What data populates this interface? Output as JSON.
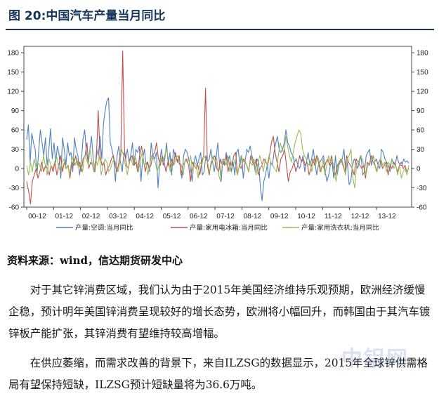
{
  "figure": {
    "title": "图 20:中国汽车产量当月同比"
  },
  "chart_data": {
    "type": "line",
    "x_ticks": [
      "00-12",
      "01-12",
      "02-12",
      "03-12",
      "04-12",
      "05-12",
      "06-12",
      "07-12",
      "08-12",
      "09-12",
      "10-12",
      "11-12",
      "12-12",
      "13-12"
    ],
    "x_range": [
      "2000-12",
      "2014-09"
    ],
    "y_ticks": [
      180,
      150,
      120,
      90,
      60,
      30,
      0,
      -30,
      -60
    ],
    "ylim": [
      -60,
      190
    ],
    "y_axis": "dual (identical left and right)",
    "grid": false,
    "legend_position": "bottom",
    "series": [
      {
        "name": "产量:空调:当月同比",
        "color": "#4f81bd",
        "values": [
          45,
          68,
          10,
          55,
          40,
          30,
          -10,
          25,
          60,
          40,
          20,
          48,
          5,
          30,
          62,
          15,
          40,
          10,
          35,
          22,
          -15,
          48,
          30,
          5,
          40,
          20,
          25,
          -5,
          48,
          30,
          20,
          -10,
          10,
          45,
          60,
          25,
          10,
          30,
          50,
          15,
          -5,
          30,
          20,
          50,
          15,
          70,
          90,
          105,
          110,
          40,
          30,
          15,
          -20,
          20,
          35,
          10,
          -5,
          25,
          15,
          30,
          10,
          20,
          40,
          5,
          30,
          25,
          35,
          -20,
          15,
          30,
          5,
          10,
          -5,
          40,
          20,
          15,
          25,
          -30,
          10,
          30,
          5,
          15,
          40,
          5,
          25,
          -10,
          30,
          20,
          15,
          10,
          5,
          -15,
          20,
          30,
          25,
          15,
          0,
          -20,
          10,
          20,
          5,
          15,
          25,
          -10,
          -5,
          20,
          10,
          15,
          30,
          10,
          -5,
          15,
          40,
          10,
          -20,
          15,
          5,
          25,
          10,
          20,
          -5,
          10,
          -10,
          25,
          30,
          5,
          20,
          -15,
          10,
          30,
          25,
          35,
          20,
          10,
          -5,
          15,
          10,
          -30,
          -50,
          -20,
          -10,
          5,
          -15,
          10,
          5,
          25,
          40,
          50,
          30,
          25,
          30,
          40,
          60,
          40,
          35,
          25,
          20,
          10,
          15,
          5,
          0,
          10,
          20,
          -5,
          10,
          25,
          5,
          15,
          30,
          10,
          -10,
          5,
          10,
          15,
          20,
          -5,
          -20,
          -10,
          5,
          10,
          -15,
          20,
          -10,
          5,
          10,
          15,
          30,
          -5,
          10,
          -25,
          -20,
          5,
          15,
          10,
          0,
          10,
          20,
          -10,
          -5,
          20,
          25,
          30,
          5,
          20,
          10,
          15,
          5,
          0,
          30,
          25,
          15,
          10,
          5,
          -5,
          15,
          10,
          5,
          20,
          10,
          5,
          5,
          15,
          10,
          12,
          8
        ]
      },
      {
        "name": "产量:家用电冰箱:当月同比",
        "color": "#c0504d",
        "values": [
          -20,
          -35,
          -55,
          -20,
          -10,
          0,
          -15,
          -5,
          10,
          -5,
          5,
          0,
          -10,
          5,
          -5,
          10,
          -10,
          5,
          20,
          -5,
          10,
          0,
          5,
          -15,
          10,
          5,
          20,
          5,
          10,
          -5,
          15,
          20,
          40,
          0,
          10,
          5,
          -5,
          15,
          90,
          20,
          5,
          10,
          -10,
          0,
          5,
          15,
          20,
          5,
          -5,
          10,
          25,
          183,
          30,
          5,
          0,
          15,
          20,
          5,
          10,
          -5,
          20,
          35,
          15,
          -5,
          10,
          0,
          5,
          20,
          25,
          40,
          15,
          5,
          20,
          10,
          -5,
          10,
          0,
          15,
          5,
          25,
          10,
          20,
          -10,
          5,
          10,
          15,
          5,
          -20,
          10,
          5,
          0,
          5,
          -10,
          10,
          20,
          125,
          5,
          -10,
          10,
          15,
          20,
          0,
          -5,
          15,
          5,
          10,
          20,
          -5,
          10,
          5,
          20,
          25,
          -10,
          5,
          0,
          15,
          10,
          5,
          -5,
          20,
          10,
          5,
          15,
          -10,
          0,
          5,
          15,
          10,
          5,
          20,
          40,
          50,
          25,
          10,
          -5,
          15,
          20,
          30,
          5,
          -20,
          -5,
          0,
          10,
          -5,
          5,
          20,
          10,
          15,
          5,
          10,
          -10,
          0,
          15,
          5,
          20,
          10,
          -5,
          5,
          0,
          10,
          15,
          5,
          20,
          0,
          -10,
          5,
          10,
          15,
          5,
          -5,
          20,
          10,
          5,
          0,
          -10,
          15,
          10,
          5,
          0,
          5,
          -15,
          10,
          5,
          20,
          10,
          5,
          -5,
          10,
          15,
          0,
          5,
          10,
          -10,
          5,
          0,
          10,
          5,
          -5,
          5,
          10,
          0,
          5,
          -5,
          0
        ]
      },
      {
        "name": "产量:家用洗衣机:当月同比",
        "color": "#9bbb59",
        "values": [
          5,
          -10,
          10,
          -5,
          15,
          0,
          10,
          5,
          -5,
          20,
          5,
          -10,
          15,
          5,
          0,
          10,
          20,
          5,
          -5,
          10,
          15,
          0,
          5,
          -10,
          10,
          20,
          5,
          15,
          0,
          10,
          -5,
          20,
          15,
          5,
          30,
          10,
          -5,
          15,
          5,
          20,
          -10,
          5,
          15,
          10,
          -5,
          0,
          10,
          15,
          5,
          -5,
          10,
          30,
          20,
          5,
          -10,
          10,
          15,
          5,
          20,
          10,
          -5,
          15,
          25,
          5,
          10,
          -10,
          5,
          20,
          15,
          10,
          -5,
          5,
          15,
          10,
          20,
          30,
          15,
          -5,
          10,
          5,
          15,
          20,
          10,
          5,
          -10,
          15,
          10,
          5,
          20,
          -5,
          10,
          5,
          -15,
          10,
          5,
          20,
          15,
          10,
          -5,
          5,
          20,
          10,
          15,
          -10,
          -20,
          10,
          15,
          5,
          20,
          -5,
          10,
          15,
          5,
          -10,
          5,
          20,
          10,
          15,
          5,
          -5,
          10,
          5,
          15,
          -10,
          5,
          20,
          10,
          -5,
          15,
          5,
          20,
          10,
          5,
          0,
          -5,
          20,
          40,
          30,
          25,
          50,
          35,
          20,
          10,
          25,
          40,
          50,
          60,
          55,
          30,
          20,
          15,
          5,
          10,
          -5,
          15,
          5,
          20,
          10,
          -5,
          15,
          -10,
          5,
          20,
          10,
          15,
          -5,
          -20,
          5,
          10,
          15,
          5,
          -10,
          15,
          20,
          30,
          -15,
          -30,
          5,
          10,
          20,
          15,
          5,
          -10,
          5,
          10,
          15,
          20,
          5,
          -5,
          10,
          15,
          5,
          10,
          -5,
          10,
          5,
          15,
          0,
          5,
          -10,
          5,
          -15,
          -5,
          0,
          -10,
          5
        ]
      }
    ]
  },
  "source": {
    "text": "资料来源：wind，信达期货研发中心"
  },
  "body": {
    "para1": "对于其它锌消费区域，我们认为由于2015年美国经济维持乐观预期，欧洲经济缓慢企稳，预计明年美国锌消费呈现较好的增长态势，欧洲将小幅回升，而韩国由于其汽车镀锌板产能扩张，其锌消费有望维持较高增幅。",
    "para2": "在供应萎缩，而需求改善的背景下，来自ILZSG的数据显示，2015年全球锌供需格局有望保持短缺，ILZSG预计短缺量将为36.6万吨。"
  },
  "watermark": {
    "text": "中铝网"
  }
}
